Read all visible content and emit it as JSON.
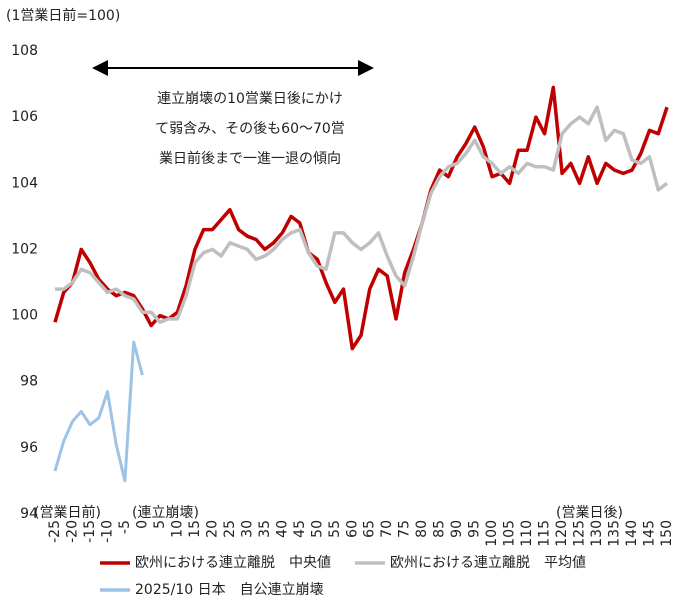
{
  "chart_data": {
    "type": "line",
    "subtitle": "(1営業日前=100)",
    "annotation": [
      "連立崩壊の10営業日後にかけ",
      "て弱含み、その後も60～70営",
      "業日前後まで一進一退の傾向"
    ],
    "x_label_left": "(営業日前)",
    "x_label_mid": "(連立崩壊)",
    "x_label_right": "(営業日後)",
    "x": [
      -25,
      -22.5,
      -20,
      -17.5,
      -15,
      -12.5,
      -10,
      -7.5,
      -5,
      -2.5,
      0,
      2.5,
      5,
      7.5,
      10,
      12.5,
      15,
      17.5,
      20,
      22.5,
      25,
      27.5,
      30,
      32.5,
      35,
      37.5,
      40,
      42.5,
      45,
      47.5,
      50,
      52.5,
      55,
      57.5,
      60,
      62.5,
      65,
      67.5,
      70,
      72.5,
      75,
      77.5,
      80,
      82.5,
      85,
      87.5,
      90,
      92.5,
      95,
      97.5,
      100,
      102.5,
      105,
      107.5,
      110,
      112.5,
      115,
      117.5,
      120,
      122.5,
      125,
      127.5,
      130,
      132.5,
      135,
      137.5,
      140,
      142.5,
      145,
      147.5,
      150
    ],
    "series": [
      {
        "name": "欧州における連立離脱　中央値",
        "color": "#c00000",
        "width": 3.5,
        "values": [
          99.8,
          100.7,
          101.0,
          102.0,
          101.6,
          101.1,
          100.8,
          100.6,
          100.7,
          100.6,
          100.2,
          99.7,
          100.0,
          99.9,
          100.1,
          100.9,
          102.0,
          102.6,
          102.6,
          102.9,
          103.2,
          102.6,
          102.4,
          102.3,
          102.0,
          102.2,
          102.5,
          103.0,
          102.8,
          101.9,
          101.7,
          101.0,
          100.4,
          100.8,
          99.0,
          99.4,
          100.8,
          101.4,
          101.2,
          99.9,
          101.3,
          102.0,
          102.8,
          103.8,
          104.4,
          104.2,
          104.8,
          105.2,
          105.7,
          105.1,
          104.2,
          104.3,
          104.0,
          105.0,
          105.0,
          106.0,
          105.5,
          106.9,
          104.3,
          104.6,
          104.0,
          104.8,
          104.0,
          104.6,
          104.4,
          104.3,
          104.4,
          104.9,
          105.6,
          105.5,
          106.3
        ]
      },
      {
        "name": "欧州における連立離脱　平均値",
        "color": "#bfbfbf",
        "width": 3.5,
        "values": [
          100.8,
          100.8,
          101.0,
          101.4,
          101.3,
          101.0,
          100.7,
          100.8,
          100.6,
          100.5,
          100.1,
          100.1,
          99.8,
          99.9,
          99.9,
          100.6,
          101.6,
          101.9,
          102.0,
          101.8,
          102.2,
          102.1,
          102.0,
          101.7,
          101.8,
          102.0,
          102.3,
          102.5,
          102.6,
          101.9,
          101.5,
          101.4,
          102.5,
          102.5,
          102.2,
          102.0,
          102.2,
          102.5,
          101.8,
          101.2,
          100.9,
          101.8,
          102.8,
          103.7,
          104.2,
          104.5,
          104.6,
          104.9,
          105.3,
          104.8,
          104.6,
          104.3,
          104.5,
          104.3,
          104.6,
          104.5,
          104.5,
          104.4,
          105.5,
          105.8,
          106.0,
          105.8,
          106.3,
          105.3,
          105.6,
          105.5,
          104.7,
          104.6,
          104.8,
          103.8,
          104.0
        ]
      },
      {
        "name": "2025/10 日本　自公連立崩壊",
        "color": "#9dc3e6",
        "width": 3,
        "values": [
          95.3,
          96.2,
          96.8,
          97.1,
          96.7,
          96.9,
          97.7,
          96.1,
          95.0,
          99.2,
          98.2,
          null,
          null,
          null,
          null,
          null,
          null,
          null,
          null,
          null,
          null,
          null,
          null,
          null,
          null,
          null,
          null,
          null,
          null,
          null,
          null,
          null,
          null,
          null,
          null,
          null,
          null,
          null,
          null,
          null,
          null,
          null,
          null,
          null,
          null,
          null,
          null,
          null,
          null,
          null,
          null,
          null,
          null,
          null,
          null,
          null,
          null,
          null,
          null,
          null,
          null,
          null,
          null,
          null,
          null,
          null,
          null,
          null,
          null,
          null,
          null
        ]
      }
    ],
    "xlim": [
      -25,
      150
    ],
    "xticks": [
      -25,
      -20,
      -15,
      -10,
      -5,
      0,
      5,
      10,
      15,
      20,
      25,
      30,
      35,
      40,
      45,
      50,
      55,
      60,
      65,
      70,
      75,
      80,
      85,
      90,
      95,
      100,
      105,
      110,
      115,
      120,
      125,
      130,
      135,
      140,
      145,
      150
    ],
    "ylim": [
      94,
      108
    ],
    "yticks": [
      94,
      96,
      98,
      100,
      102,
      104,
      106,
      108
    ],
    "grid": false
  }
}
